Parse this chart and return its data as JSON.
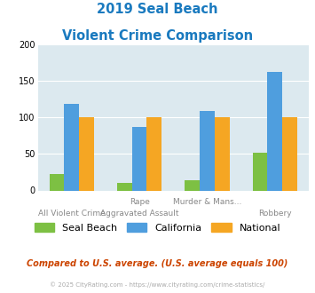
{
  "title_line1": "2019 Seal Beach",
  "title_line2": "Violent Crime Comparison",
  "cat_labels_top": [
    "",
    "Rape",
    "Murder & Mans...",
    ""
  ],
  "cat_labels_bottom": [
    "All Violent Crime",
    "Aggravated Assault",
    "",
    "Robbery"
  ],
  "seal_beach": [
    22,
    10,
    14,
    52
  ],
  "california": [
    118,
    87,
    108,
    162
  ],
  "national": [
    100,
    100,
    100,
    100
  ],
  "color_seal_beach": "#7dc043",
  "color_california": "#4f9ede",
  "color_national": "#f5a623",
  "ylim": [
    0,
    200
  ],
  "yticks": [
    0,
    50,
    100,
    150,
    200
  ],
  "bg_color": "#dce9ef",
  "footer_text": "Compared to U.S. average. (U.S. average equals 100)",
  "copyright_text": "© 2025 CityRating.com - https://www.cityrating.com/crime-statistics/",
  "legend_labels": [
    "Seal Beach",
    "California",
    "National"
  ],
  "title_color": "#1a7abf",
  "footer_color": "#cc4400",
  "copyright_color": "#aaaaaa"
}
